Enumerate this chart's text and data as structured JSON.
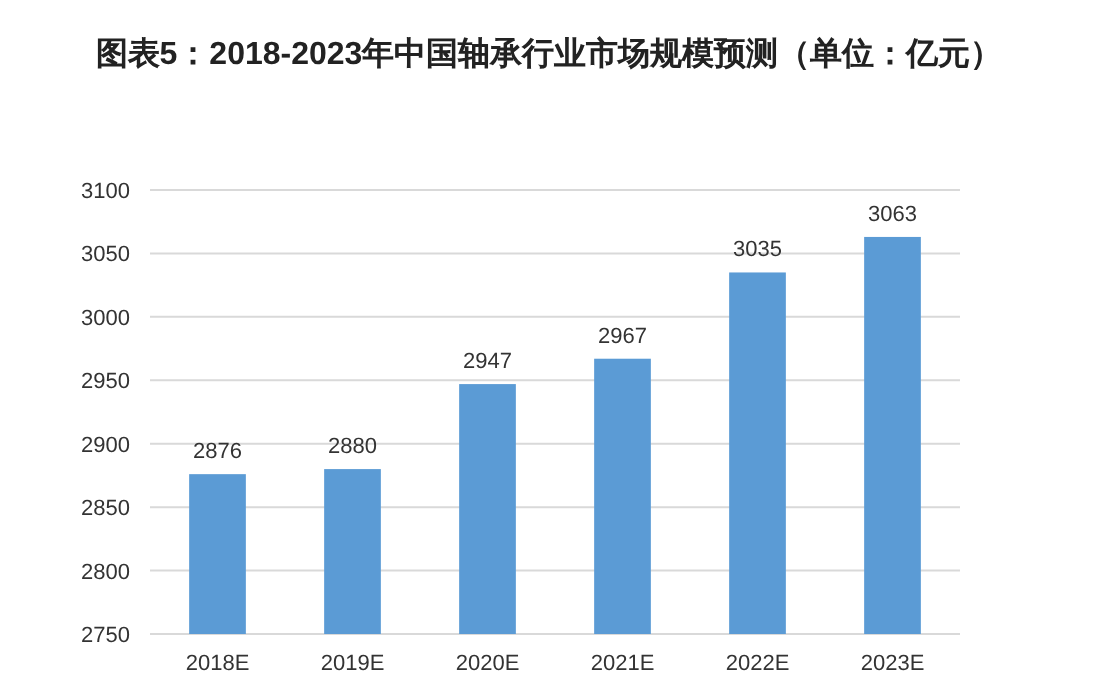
{
  "chart_data": {
    "type": "bar",
    "title": "图表5：2018-2023年中国轴承行业市场规模预测（单位：亿元）",
    "categories": [
      "2018E",
      "2019E",
      "2020E",
      "2021E",
      "2022E",
      "2023E"
    ],
    "values": [
      2876,
      2880,
      2947,
      2967,
      3035,
      3063
    ],
    "color": "#5b9bd5",
    "ylim": [
      2750,
      3100
    ],
    "yticks": [
      2750,
      2800,
      2850,
      2900,
      2950,
      3000,
      3050,
      3100
    ],
    "grid": "y",
    "data_labels": true
  }
}
